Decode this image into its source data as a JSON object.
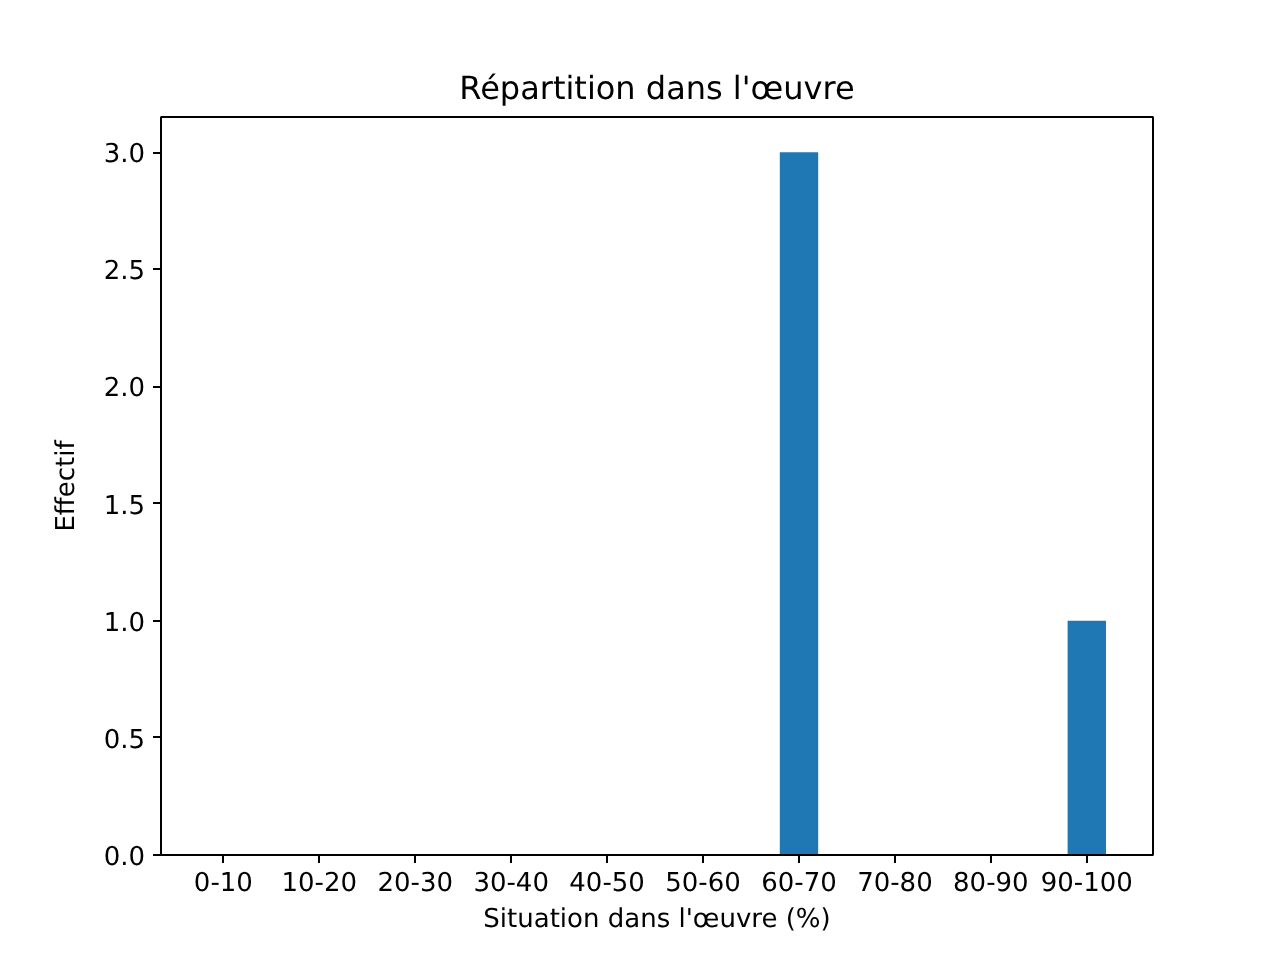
{
  "chart_data": {
    "type": "bar",
    "title": "Répartition dans l'œuvre",
    "xlabel": "Situation dans l'œuvre (%)",
    "ylabel": "Effectif",
    "categories": [
      "0-10",
      "10-20",
      "20-30",
      "30-40",
      "40-50",
      "50-60",
      "60-70",
      "70-80",
      "80-90",
      "90-100"
    ],
    "values": [
      0,
      0,
      0,
      0,
      0,
      0,
      3,
      0,
      0,
      1
    ],
    "color": "#1f77b4",
    "ylim": [
      0,
      3.15
    ],
    "yticks": [
      {
        "value": 0,
        "label": "0.0"
      },
      {
        "value": 0.5,
        "label": "0.5"
      },
      {
        "value": 1,
        "label": "1.0"
      },
      {
        "value": 1.5,
        "label": "1.5"
      },
      {
        "value": 2,
        "label": "2.0"
      },
      {
        "value": 2.5,
        "label": "2.5"
      },
      {
        "value": 3,
        "label": "3.0"
      }
    ],
    "grid": false
  }
}
